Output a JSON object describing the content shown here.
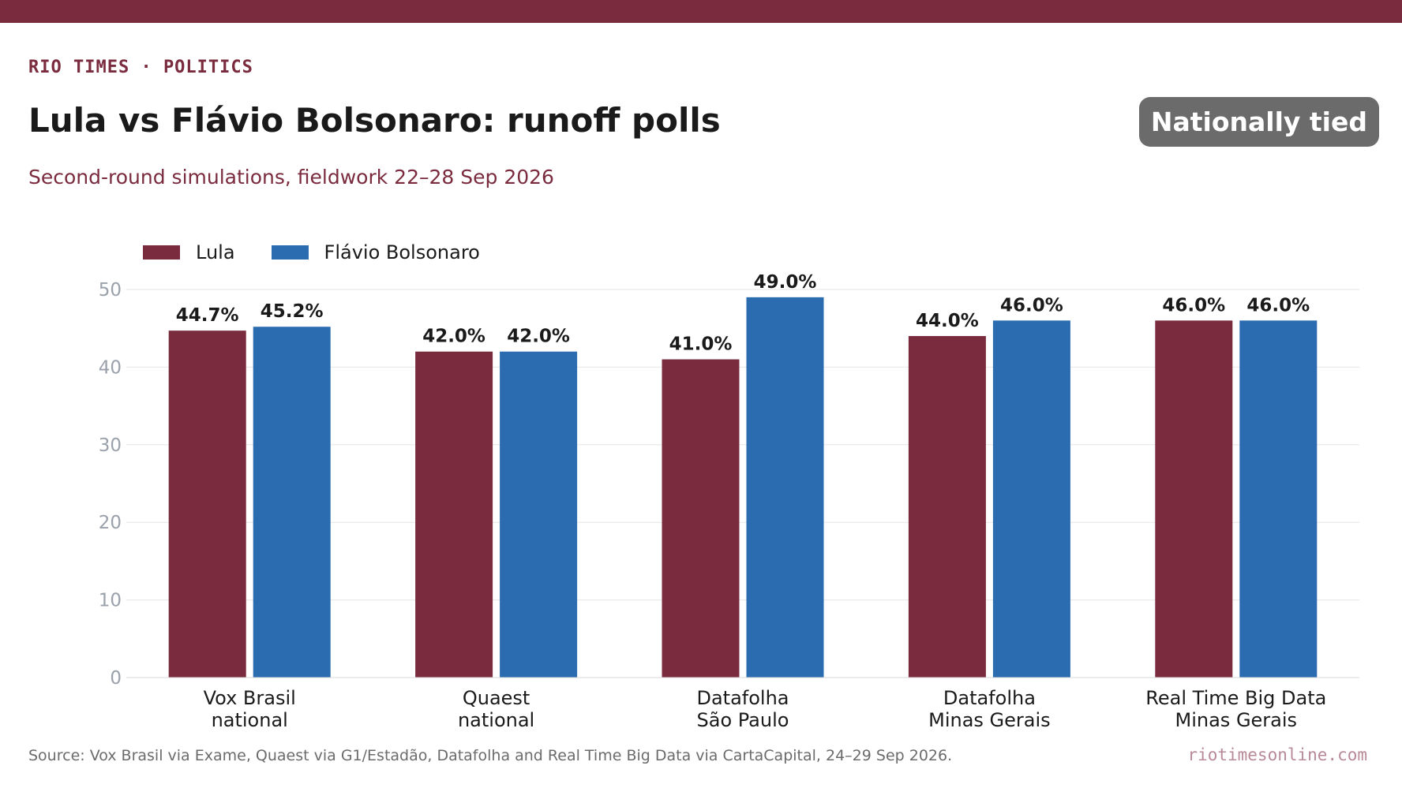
{
  "header": {
    "kicker": "RIO TIMES · POLITICS",
    "title": "Lula vs Flávio Bolsonaro: runoff polls",
    "subtitle": "Second-round simulations, fieldwork 22–28 Sep 2026",
    "badge": "Nationally tied"
  },
  "colors": {
    "brand": "#7a2b3e",
    "lula": "#7a2b3e",
    "flavio": "#2b6cb0",
    "badge_bg": "#6b6b6b",
    "axis_text": "#9aa1ab",
    "grid": "#e6e6e6"
  },
  "chart_data": {
    "type": "bar",
    "categories": [
      [
        "Vox Brasil",
        "national"
      ],
      [
        "Quaest",
        "national"
      ],
      [
        "Datafolha",
        "São Paulo"
      ],
      [
        "Datafolha",
        "Minas Gerais"
      ],
      [
        "Real Time Big Data",
        "Minas Gerais"
      ]
    ],
    "series": [
      {
        "name": "Lula",
        "values": [
          44.7,
          42.0,
          41.0,
          44.0,
          46.0
        ],
        "labels": [
          "44.7%",
          "42.0%",
          "41.0%",
          "44.0%",
          "46.0%"
        ]
      },
      {
        "name": "Flávio Bolsonaro",
        "values": [
          45.2,
          42.0,
          49.0,
          46.0,
          46.0
        ],
        "labels": [
          "45.2%",
          "42.0%",
          "49.0%",
          "46.0%",
          "46.0%"
        ]
      }
    ],
    "ylim": [
      0,
      50
    ],
    "yticks": [
      0,
      10,
      20,
      30,
      40,
      50
    ],
    "grid": true,
    "legend_position": "top-left"
  },
  "footer": {
    "source": "Source: Vox Brasil via Exame, Quaest via G1/Estadão, Datafolha and Real Time Big Data via CartaCapital, 24–29 Sep 2026.",
    "site": "riotimesonline.com"
  }
}
